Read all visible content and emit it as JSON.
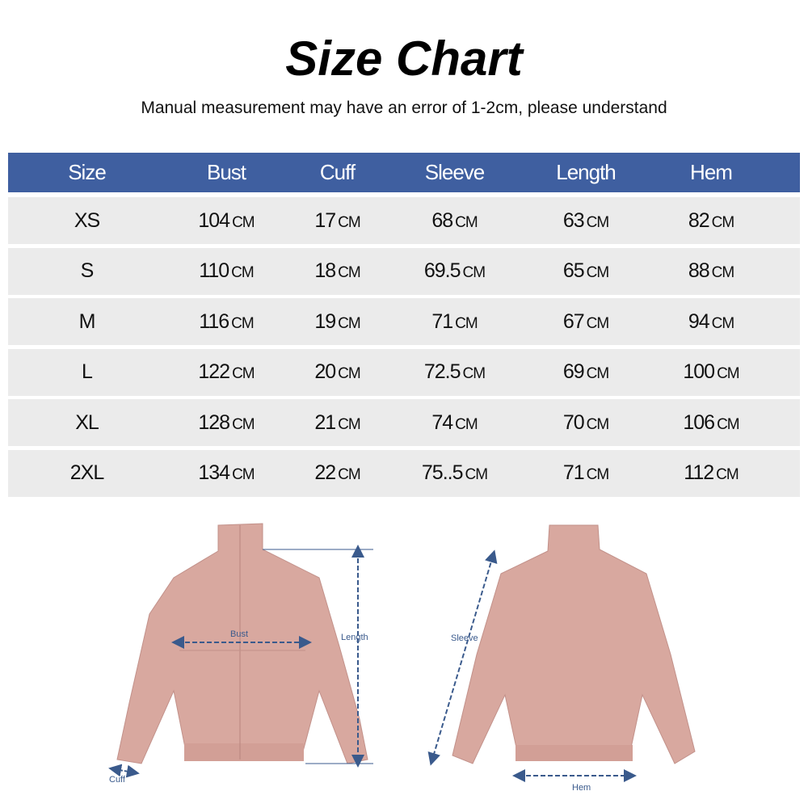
{
  "title": "Size Chart",
  "subtitle": "Manual measurement may have an error of 1-2cm, please understand",
  "colors": {
    "header": "#3f5fa0",
    "row": "#ebebeb",
    "jacket": "#d8a89f",
    "measure": "#3a5a8c"
  },
  "table": {
    "headers": [
      "Size",
      "Bust",
      "Cuff",
      "Sleeve",
      "Length",
      "Hem"
    ],
    "unit": "CM",
    "rows": [
      [
        "XS",
        "104",
        "17",
        "68",
        "63",
        "82"
      ],
      [
        "S",
        "110",
        "18",
        "69.5",
        "65",
        "88"
      ],
      [
        "M",
        "116",
        "19",
        "71",
        "67",
        "94"
      ],
      [
        "L",
        "122",
        "20",
        "72.5",
        "69",
        "100"
      ],
      [
        "XL",
        "128",
        "21",
        "74",
        "70",
        "106"
      ],
      [
        "2XL",
        "134",
        "22",
        "75..5",
        "71",
        "112"
      ]
    ]
  },
  "diagram": {
    "bust": "Bust",
    "length": "Length",
    "cuff": "Cuff",
    "sleeve": "Sleeve",
    "hem": "Hem"
  }
}
